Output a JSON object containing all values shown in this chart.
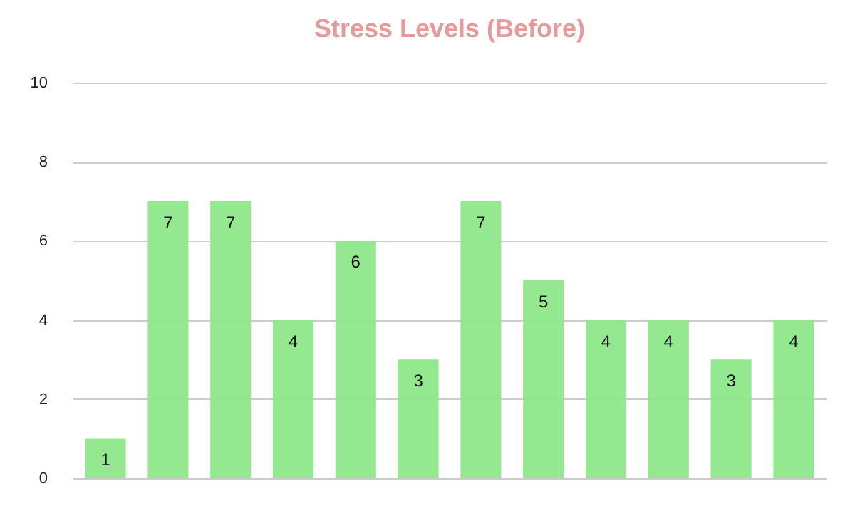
{
  "chart_data": {
    "type": "bar",
    "title": "Stress Levels (Before)",
    "categories": [
      null,
      null,
      null,
      null,
      null,
      null,
      null,
      null,
      null,
      null,
      null,
      null
    ],
    "values": [
      1,
      7,
      7,
      4,
      6,
      3,
      7,
      5,
      4,
      4,
      3,
      4
    ],
    "color": "#8ee88a",
    "ylim": [
      0,
      10
    ],
    "yticks": [
      0,
      2,
      4,
      6,
      8,
      10
    ],
    "grid": "y",
    "tick_labels": "y",
    "data_labels": true
  }
}
